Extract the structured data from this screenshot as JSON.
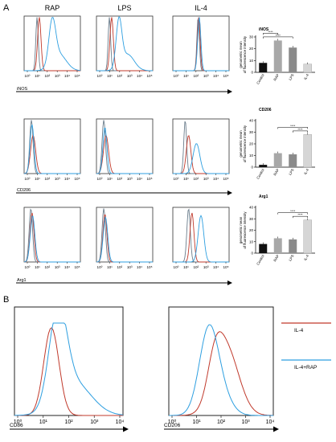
{
  "panel_a": {
    "label": "A",
    "column_titles": [
      "RAP",
      "LPS",
      "IL-4"
    ],
    "row_markers": [
      "iNOS",
      "CD206",
      "Arg1"
    ],
    "tick_labels": [
      "10⁰",
      "10¹",
      "10²",
      "10³",
      "10⁴",
      "10⁵"
    ]
  },
  "panel_b": {
    "label": "B",
    "x_markers": [
      "CD86",
      "CD206"
    ],
    "tick_labels": [
      "10⁰",
      "10¹",
      "10²",
      "10³",
      "10⁴"
    ],
    "legend": [
      {
        "label": "IL-4",
        "color": "#c0392b"
      },
      {
        "label": "IL-4+RAP",
        "color": "#2e9fe0"
      }
    ]
  },
  "colors": {
    "red": "#c0392b",
    "blue": "#2e9fe0",
    "gray": "#6b7d8c",
    "bar_control": "#111111",
    "bar_rap": "#a8a8a8",
    "bar_lps": "#8a8a8a",
    "bar_il4": "#d6d6d6"
  },
  "chart_data": [
    {
      "type": "bar",
      "title": "iNOS",
      "ylabel": "genometric mean of fluorescence intensity",
      "categories": [
        "Control",
        "RAP",
        "LPS",
        "IL-4"
      ],
      "values": [
        8,
        27,
        21,
        7
      ],
      "ylim": [
        0,
        30
      ],
      "yticks": [
        0,
        10,
        20,
        30
      ],
      "significance": [
        {
          "from": 0,
          "to": 1,
          "label": "****"
        },
        {
          "from": 0,
          "to": 2,
          "label": "****"
        }
      ]
    },
    {
      "type": "bar",
      "title": "CD206",
      "ylabel": "genometric mean of fluorescence intensity",
      "categories": [
        "Control",
        "RAP",
        "LPS",
        "IL-4"
      ],
      "values": [
        2,
        12,
        11,
        28
      ],
      "ylim": [
        0,
        40
      ],
      "yticks": [
        0,
        10,
        20,
        30,
        40
      ],
      "significance": [
        {
          "from": 1,
          "to": 3,
          "label": "****"
        },
        {
          "from": 2,
          "to": 3,
          "label": "****"
        }
      ]
    },
    {
      "type": "bar",
      "title": "Arg1",
      "ylabel": "genometric mean of fluorescence intensity",
      "categories": [
        "Control",
        "RAP",
        "LPS",
        "IL-4"
      ],
      "values": [
        8,
        13,
        12,
        29
      ],
      "ylim": [
        0,
        40
      ],
      "yticks": [
        0,
        10,
        20,
        30,
        40
      ],
      "significance": [
        {
          "from": 1,
          "to": 3,
          "label": "****"
        },
        {
          "from": 2,
          "to": 3,
          "label": "****"
        }
      ]
    }
  ]
}
